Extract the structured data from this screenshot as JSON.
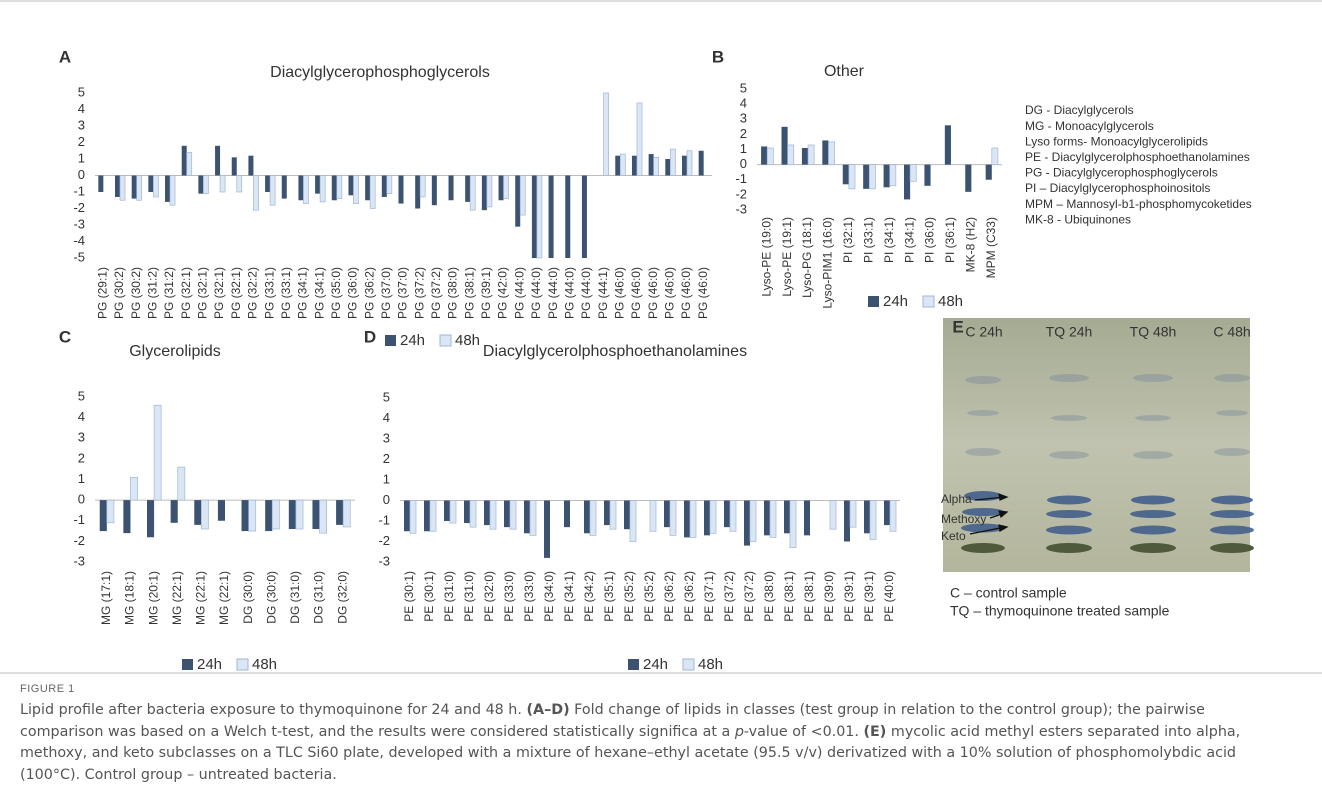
{
  "chart_data": [
    {
      "type": "bar",
      "panel": "A",
      "title": "Diacylglycerophosphoglycerols",
      "categories": [
        "PG (29:1)",
        "PG (30:2)",
        "PG (30:2)",
        "PG (31:2)",
        "PG (31:2)",
        "PG (32:1)",
        "PG (32:1)",
        "PG (32:1)",
        "PG (32:1)",
        "PG (32:2)",
        "PG (33:1)",
        "PG (33:1)",
        "PG (34:1)",
        "PG (34:1)",
        "PG (35:0)",
        "PG (36:0)",
        "PG (36:2)",
        "PG (37:0)",
        "PG (37:0)",
        "PG (37:2)",
        "PG (37:2)",
        "PG (38:0)",
        "PG (38:1)",
        "PG (39:1)",
        "PG (42:0)",
        "PG (44:0)",
        "PG (44:0)",
        "PG (44:0)",
        "PG (44:0)",
        "PG (44:0)",
        "PG (44:1)",
        "PG (46:0)",
        "PG (46:0)",
        "PG (46:0)",
        "PG (46:0)",
        "PG (46:0)",
        "PG (46:0)"
      ],
      "series": [
        {
          "name": "24h",
          "color": "#3b5370",
          "values": [
            -1.0,
            -1.3,
            -1.4,
            -1.0,
            -1.6,
            1.8,
            -1.1,
            1.8,
            1.1,
            1.2,
            -1.0,
            -1.4,
            -1.5,
            -1.1,
            -1.5,
            -1.2,
            -1.5,
            -1.3,
            -1.7,
            -2.0,
            -1.8,
            -1.5,
            -1.6,
            -2.1,
            -1.5,
            -3.1,
            -5,
            -5,
            -5,
            -5,
            null,
            1.2,
            1.2,
            1.3,
            1.0,
            1.2,
            1.5
          ]
        },
        {
          "name": "48h",
          "color": "#dbe6f5",
          "values": [
            null,
            -1.5,
            -1.5,
            -1.3,
            -1.8,
            1.4,
            -1.1,
            -1.0,
            -1.0,
            -2.1,
            -1.8,
            null,
            -1.7,
            -1.6,
            -1.4,
            -1.7,
            -2.0,
            -1.1,
            null,
            -1.3,
            null,
            null,
            -2.1,
            -1.9,
            -1.4,
            -2.4,
            -5,
            null,
            null,
            null,
            5,
            1.3,
            4.4,
            1.1,
            1.6,
            1.5,
            null
          ]
        }
      ],
      "ylim": [
        -5,
        5
      ],
      "yticks": [
        -5,
        -4,
        -3,
        -2,
        -1,
        0,
        1,
        2,
        3,
        4,
        5
      ],
      "grid": false
    },
    {
      "type": "bar",
      "panel": "B",
      "title": "Other",
      "categories": [
        "Lyso-PE (19:0)",
        "Lyso-PE (19:1)",
        "Lyso-PG (18:1)",
        "Lyso-PIM1 (16:0)",
        "PI (32:1)",
        "PI (33:1)",
        "PI (34:1)",
        "PI (34:1)",
        "PI (36:0)",
        "PI (36:1)",
        "MK-8 (H2)",
        "MPM (C33)"
      ],
      "series": [
        {
          "name": "24h",
          "color": "#3b5370",
          "values": [
            1.2,
            2.5,
            1.1,
            1.6,
            -1.3,
            -1.6,
            -1.5,
            -2.3,
            -1.4,
            2.6,
            -1.8,
            -1.0
          ]
        },
        {
          "name": "48h",
          "color": "#dbe6f5",
          "values": [
            1.1,
            1.3,
            1.3,
            1.5,
            -1.6,
            -1.6,
            -1.4,
            -1.1,
            null,
            null,
            null,
            1.1
          ]
        }
      ],
      "ylim": [
        -3,
        5
      ],
      "yticks": [
        -3,
        -2,
        -1,
        0,
        1,
        2,
        3,
        4,
        5
      ],
      "grid": false
    },
    {
      "type": "bar",
      "panel": "C",
      "title": "Glycerolipids",
      "categories": [
        "MG (17:1)",
        "MG (18:1)",
        "MG (20:1)",
        "MG (22:1)",
        "MG (22:1)",
        "MG (22:1)",
        "DG (30:0)",
        "DG (30:0)",
        "DG (31:0)",
        "DG (31:0)",
        "DG (32:0)"
      ],
      "series": [
        {
          "name": "24h",
          "color": "#3b5370",
          "values": [
            -1.5,
            -1.6,
            -1.8,
            -1.1,
            -1.2,
            -1.0,
            -1.5,
            -1.5,
            -1.4,
            -1.4,
            -1.2
          ]
        },
        {
          "name": "48h",
          "color": "#dbe6f5",
          "values": [
            -1.1,
            1.1,
            4.6,
            1.6,
            -1.4,
            null,
            -1.5,
            -1.4,
            -1.4,
            -1.6,
            -1.3
          ]
        }
      ],
      "ylim": [
        -3,
        5
      ],
      "yticks": [
        -3,
        -2,
        -1,
        0,
        1,
        2,
        3,
        4,
        5
      ],
      "grid": false
    },
    {
      "type": "bar",
      "panel": "D",
      "title": "Diacylglycerolphosphoethanolamines",
      "categories": [
        "PE (30:1)",
        "PE (30:1)",
        "PE (31:0)",
        "PE (31:0)",
        "PE (32:0)",
        "PE (33:0)",
        "PE (33:0)",
        "PE (34:0)",
        "PE (34:1)",
        "PE (34:2)",
        "PE (35:1)",
        "PE (35:2)",
        "PE (35:2)",
        "PE (36:2)",
        "PE (36:2)",
        "PE (37:1)",
        "PE (37:2)",
        "PE (37:2)",
        "PE (38:0)",
        "PE (38:1)",
        "PE (38:1)",
        "PE (39:0)",
        "PE (39:1)",
        "PE (39:1)",
        "PE (40:0)"
      ],
      "series": [
        {
          "name": "24h",
          "color": "#3b5370",
          "values": [
            -1.5,
            -1.5,
            -1.0,
            -1.1,
            -1.2,
            -1.3,
            -1.6,
            -2.8,
            -1.3,
            -1.6,
            -1.2,
            -1.4,
            null,
            -1.3,
            -1.8,
            -1.7,
            -1.3,
            -2.2,
            -1.7,
            -1.6,
            -1.7,
            null,
            -2.0,
            -1.6,
            -1.2
          ]
        },
        {
          "name": "48h",
          "color": "#dbe6f5",
          "values": [
            -1.6,
            -1.5,
            -1.1,
            -1.3,
            -1.4,
            -1.4,
            -1.7,
            null,
            null,
            -1.7,
            -1.4,
            -2.0,
            -1.5,
            -1.7,
            -1.8,
            -1.6,
            -1.5,
            -2.0,
            -1.8,
            -2.3,
            null,
            -1.4,
            -1.3,
            -1.9,
            -1.5
          ]
        }
      ],
      "ylim": [
        -3,
        5
      ],
      "yticks": [
        -3,
        -2,
        -1,
        0,
        1,
        2,
        3,
        4,
        5
      ],
      "grid": false
    }
  ],
  "abbreviations": [
    "DG - Diacylglycerols",
    "MG - Monoacylglycerols",
    "Lyso forms- Monoacylglycerolipids",
    "PE - Diacylglycerolphosphoethanolamines",
    "PG - Diacylglycerophosphoglycerols",
    "PI – Diacylglycerophosphoinositols",
    "MPM – Mannosyl-b1-phosphomycoketides",
    "MK-8 - Ubiquinones"
  ],
  "tlc": {
    "panel": "E",
    "lanes": [
      "C 24h",
      "TQ 24h",
      "TQ 48h",
      "C 48h"
    ],
    "bands": [
      "Alpha",
      "Methoxy",
      "Keto"
    ],
    "notes": [
      "C – control sample",
      "TQ – thymoquinone treated sample"
    ]
  },
  "figure": {
    "label": "FIGURE 1",
    "caption": [
      "Lipid profile after bacteria exposure to thymoquinone for 24 and 48 h.",
      "(A–D)",
      "Fold change of lipids in classes (test group in relation to the control group); the pairwise comparison was based on a Welch t-test, and the results were considered statistically significa at a",
      "p",
      "-value of <0.01.",
      "(E)",
      "mycolic acid methyl esters separated into alpha, methoxy, and keto subclasses on a TLC Si60 plate, developed with a mixture of hexane–ethyl acetate (95.5 v/v) derivatized with a 10% solution of phosphomolybdic acid (100°C). Control group – untreated bacteria."
    ]
  }
}
